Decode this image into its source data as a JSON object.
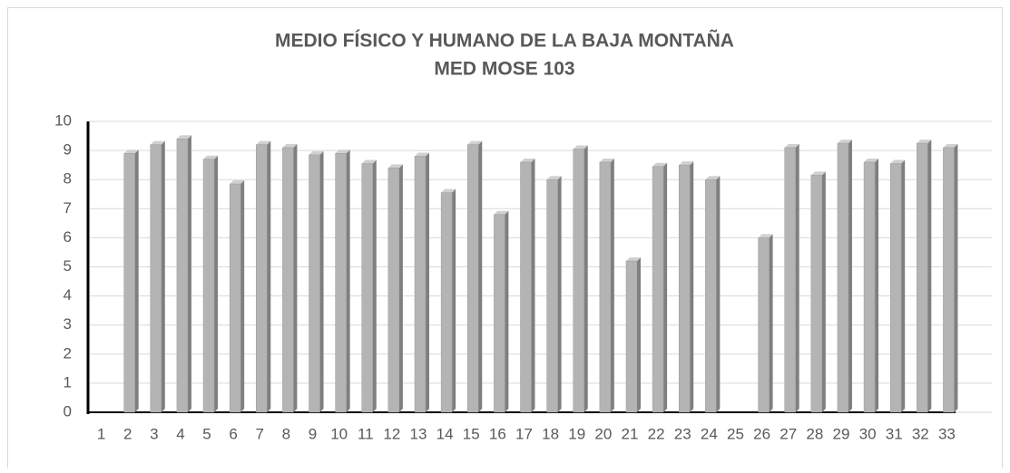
{
  "chart_data": {
    "type": "bar",
    "title": "MEDIO FÍSICO Y HUMANO DE LA BAJA MONTAÑA",
    "subtitle": "MED MOSE 103",
    "categories": [
      "1",
      "2",
      "3",
      "4",
      "5",
      "6",
      "7",
      "8",
      "9",
      "10",
      "11",
      "12",
      "13",
      "14",
      "15",
      "16",
      "17",
      "18",
      "19",
      "20",
      "21",
      "22",
      "23",
      "24",
      "25",
      "26",
      "27",
      "28",
      "29",
      "30",
      "31",
      "32",
      "33"
    ],
    "values": [
      null,
      8.9,
      9.2,
      9.4,
      8.7,
      7.85,
      9.2,
      9.1,
      8.85,
      8.9,
      8.55,
      8.4,
      8.8,
      7.55,
      9.2,
      6.8,
      8.6,
      8.0,
      9.05,
      8.6,
      5.2,
      8.45,
      8.5,
      8.0,
      null,
      6.0,
      9.1,
      8.15,
      9.25,
      8.6,
      8.55,
      9.25,
      9.1
    ],
    "color": "#b4b4b4",
    "ylim": [
      0,
      10
    ],
    "yticks": [
      0,
      1,
      2,
      3,
      4,
      5,
      6,
      7,
      8,
      9,
      10
    ],
    "grid": true
  }
}
